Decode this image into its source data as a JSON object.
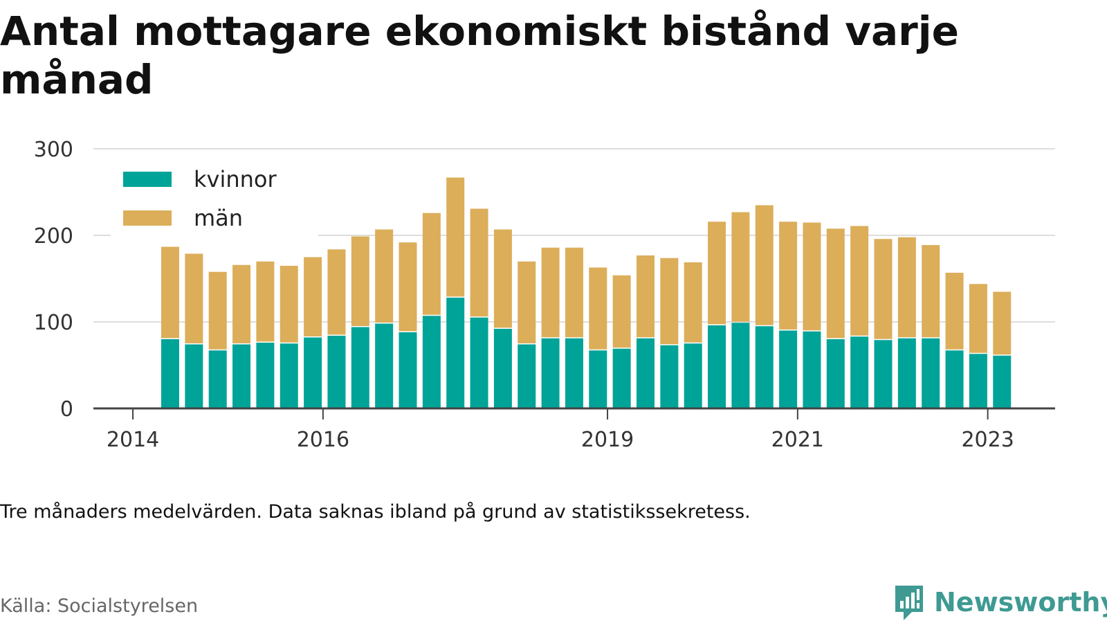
{
  "title": "Antal mottagare ekonomiskt bistånd varje månad",
  "note": "Tre månaders medelvärden. Data saknas ibland på grund av statistikssekretess.",
  "source": "Källa: Socialstyrelsen",
  "brand": "Newsworthy",
  "colors": {
    "kvinnor": "#00a398",
    "man": "#dcae5a",
    "grid": "#dddddd",
    "axis": "#444444",
    "brand": "#3e9a92"
  },
  "chart_data": {
    "type": "bar",
    "stacked": true,
    "ylim": [
      0,
      300
    ],
    "yticks": [
      0,
      100,
      200,
      300
    ],
    "xticks": [
      "2014",
      "2016",
      "2019",
      "2021",
      "2023"
    ],
    "legend_position": "top-left",
    "grid": true,
    "categories": [
      "2014-Q2",
      "2014-Q3",
      "2014-Q4",
      "2015-Q1",
      "2015-Q2",
      "2015-Q3",
      "2015-Q4",
      "2016-Q1",
      "2016-Q2",
      "2016-Q3",
      "2016-Q4",
      "2017-Q1",
      "2017-Q2",
      "2017-Q3",
      "2017-Q4",
      "2018-Q1",
      "2018-Q2",
      "2018-Q3",
      "2018-Q4",
      "2019-Q1",
      "2019-Q2",
      "2019-Q3",
      "2019-Q4",
      "2020-Q1",
      "2020-Q2",
      "2020-Q3",
      "2020-Q4",
      "2021-Q1",
      "2021-Q2",
      "2021-Q3",
      "2021-Q4",
      "2022-Q1",
      "2022-Q2",
      "2022-Q3",
      "2022-Q4",
      "2023-Q1"
    ],
    "series": [
      {
        "name": "kvinnor",
        "values": [
          80,
          74,
          67,
          74,
          76,
          75,
          82,
          84,
          94,
          98,
          88,
          107,
          128,
          105,
          92,
          74,
          81,
          81,
          67,
          69,
          81,
          73,
          75,
          96,
          99,
          95,
          90,
          89,
          80,
          83,
          79,
          81,
          81,
          67,
          63,
          61
        ]
      },
      {
        "name": "män",
        "values": [
          108,
          106,
          92,
          93,
          95,
          91,
          94,
          101,
          106,
          110,
          105,
          120,
          140,
          127,
          116,
          97,
          106,
          106,
          97,
          86,
          97,
          102,
          95,
          121,
          129,
          141,
          127,
          127,
          129,
          129,
          118,
          118,
          109,
          91,
          82,
          75
        ]
      }
    ]
  }
}
